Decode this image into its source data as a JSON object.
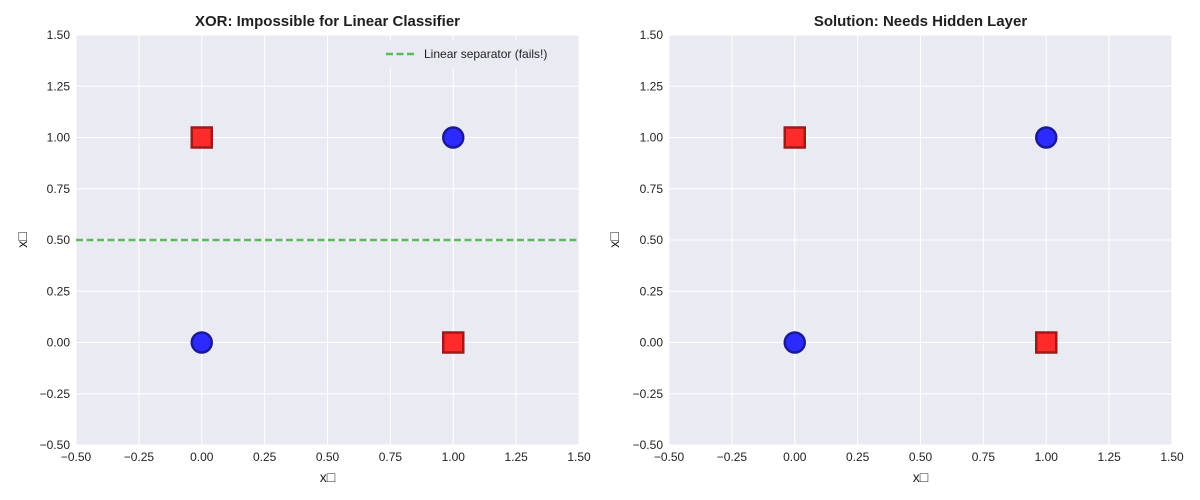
{
  "colors": {
    "plot_background": "#eaeaf2",
    "grid": "#ffffff",
    "class_circle_fill": "#2b2bff",
    "class_circle_edge": "#1a1a99",
    "class_square_fill": "#ff2b2b",
    "class_square_edge": "#a01818",
    "separator": "#5cb85c"
  },
  "chart_data": [
    {
      "type": "scatter",
      "title": "XOR: Impossible for Linear Classifier",
      "xlabel": "x□",
      "ylabel": "x□",
      "xlim": [
        -0.5,
        1.5
      ],
      "ylim": [
        -0.5,
        1.5
      ],
      "xticks": [
        "−0.50",
        "−0.25",
        "0.00",
        "0.25",
        "0.50",
        "0.75",
        "1.00",
        "1.25",
        "1.50"
      ],
      "yticks": [
        "−0.50",
        "−0.25",
        "0.00",
        "0.25",
        "0.50",
        "0.75",
        "1.00",
        "1.25",
        "1.50"
      ],
      "grid": true,
      "series": [
        {
          "marker": "circle",
          "color": "blue",
          "points": [
            [
              0,
              0
            ],
            [
              1,
              1
            ]
          ]
        },
        {
          "marker": "square",
          "color": "red",
          "points": [
            [
              0,
              1
            ],
            [
              1,
              0
            ]
          ]
        }
      ],
      "lines": [
        {
          "name": "Linear separator (fails!)",
          "style": "dashed",
          "color": "green",
          "y": 0.5
        }
      ],
      "legend": {
        "placement": "top-right",
        "entries": [
          "Linear separator (fails!)"
        ]
      }
    },
    {
      "type": "scatter",
      "title": "Solution: Needs Hidden Layer",
      "xlabel": "x□",
      "ylabel": "x□",
      "xlim": [
        -0.5,
        1.5
      ],
      "ylim": [
        -0.5,
        1.5
      ],
      "xticks": [
        "−0.50",
        "−0.25",
        "0.00",
        "0.25",
        "0.50",
        "0.75",
        "1.00",
        "1.25",
        "1.50"
      ],
      "yticks": [
        "−0.50",
        "−0.25",
        "0.00",
        "0.25",
        "0.50",
        "0.75",
        "1.00",
        "1.25",
        "1.50"
      ],
      "grid": true,
      "series": [
        {
          "marker": "circle",
          "color": "blue",
          "points": [
            [
              0,
              0
            ],
            [
              1,
              1
            ]
          ]
        },
        {
          "marker": "square",
          "color": "red",
          "points": [
            [
              0,
              1
            ],
            [
              1,
              0
            ]
          ]
        }
      ],
      "lines": [],
      "legend": null
    }
  ]
}
